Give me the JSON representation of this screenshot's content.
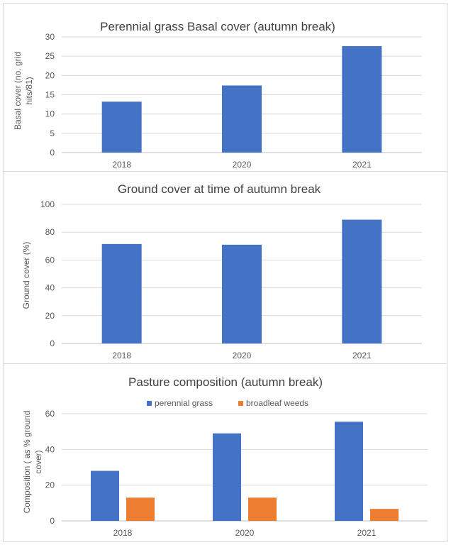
{
  "charts": [
    {
      "title": "Perennial grass Basal cover (autumn break)",
      "ylabel_lines": [
        "Basal cover (no. grid",
        "hits/81)"
      ],
      "series_colors": [
        "#4472c4"
      ]
    },
    {
      "title": "Ground cover at time of autumn break",
      "ylabel_lines": [
        "Ground cover (%)"
      ],
      "series_colors": [
        "#4472c4"
      ]
    },
    {
      "title": "Pasture composition (autumn break)",
      "ylabel_lines": [
        "Composition ( as % ground",
        "cover)"
      ],
      "series_colors": [
        "#4472c4",
        "#ed7d31"
      ]
    }
  ],
  "chart_data": [
    {
      "type": "bar",
      "title": "Perennial grass Basal cover (autumn break)",
      "ylabel": "Basal cover (no. grid hits/81)",
      "xlabel": "",
      "categories": [
        "2018",
        "2020",
        "2021"
      ],
      "values": [
        13.2,
        17.4,
        27.6
      ],
      "ylim": [
        0,
        30
      ],
      "yticks": [
        0,
        5,
        10,
        15,
        20,
        25,
        30
      ],
      "grid": true,
      "legend": "none"
    },
    {
      "type": "bar",
      "title": "Ground cover at time of autumn break",
      "ylabel": "Ground cover (%)",
      "xlabel": "",
      "categories": [
        "2018",
        "2020",
        "2021"
      ],
      "values": [
        71.5,
        71,
        89
      ],
      "ylim": [
        0,
        100
      ],
      "yticks": [
        0,
        20,
        40,
        60,
        80,
        100
      ],
      "grid": true,
      "legend": "none"
    },
    {
      "type": "bar",
      "title": "Pasture composition (autumn break)",
      "ylabel": "Composition ( as % ground cover)",
      "xlabel": "",
      "categories": [
        "2018",
        "2020",
        "2021"
      ],
      "series": [
        {
          "name": "perennial grass",
          "values": [
            28,
            49,
            55.5
          ]
        },
        {
          "name": "broadleaf weeds",
          "values": [
            13,
            13,
            6.7
          ]
        }
      ],
      "ylim": [
        0,
        60
      ],
      "yticks": [
        0,
        20,
        40,
        60
      ],
      "grid": true,
      "legend": "top-center"
    }
  ]
}
